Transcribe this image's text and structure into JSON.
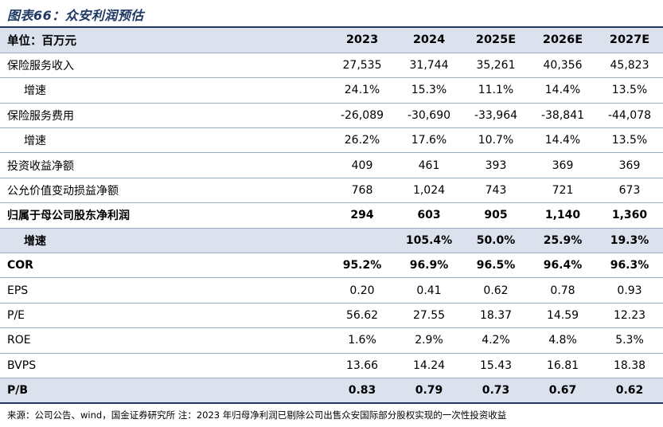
{
  "title": "图表66：众安利润预估",
  "header": {
    "label": "单位：百万元",
    "years": [
      "2023",
      "2024",
      "2025E",
      "2026E",
      "2027E"
    ]
  },
  "rows": [
    {
      "label": "保险服务收入",
      "values": [
        "27,535",
        "31,744",
        "35,261",
        "40,356",
        "45,823"
      ]
    },
    {
      "label": "增速",
      "values": [
        "24.1%",
        "15.3%",
        "11.1%",
        "14.4%",
        "13.5%"
      ]
    },
    {
      "label": "保险服务费用",
      "values": [
        "-26,089",
        "-30,690",
        "-33,964",
        "-38,841",
        "-44,078"
      ]
    },
    {
      "label": "增速",
      "values": [
        "26.2%",
        "17.6%",
        "10.7%",
        "14.4%",
        "13.5%"
      ]
    },
    {
      "label": "投资收益净额",
      "values": [
        "409",
        "461",
        "393",
        "369",
        "369"
      ]
    },
    {
      "label": "公允价值变动损益净额",
      "values": [
        "768",
        "1,024",
        "743",
        "721",
        "673"
      ]
    },
    {
      "label": "归属于母公司股东净利润",
      "values": [
        "294",
        "603",
        "905",
        "1,140",
        "1,360"
      ]
    },
    {
      "label": "增速",
      "values": [
        "",
        "105.4%",
        "50.0%",
        "25.9%",
        "19.3%"
      ]
    },
    {
      "label": "COR",
      "values": [
        "95.2%",
        "96.9%",
        "96.5%",
        "96.4%",
        "96.3%"
      ]
    },
    {
      "label": "EPS",
      "values": [
        "0.20",
        "0.41",
        "0.62",
        "0.78",
        "0.93"
      ]
    },
    {
      "label": "P/E",
      "values": [
        "56.62",
        "27.55",
        "18.37",
        "14.59",
        "12.23"
      ]
    },
    {
      "label": "ROE",
      "values": [
        "1.6%",
        "2.9%",
        "4.2%",
        "4.8%",
        "5.3%"
      ]
    },
    {
      "label": "BVPS",
      "values": [
        "13.66",
        "14.24",
        "15.43",
        "16.81",
        "18.38"
      ]
    },
    {
      "label": "P/B",
      "values": [
        "0.83",
        "0.79",
        "0.73",
        "0.67",
        "0.62"
      ]
    }
  ],
  "footer": "来源：公司公告、wind，国金证券研究所 注：2023 年归母净利润已剔除公司出售众安国际部分股权实现的一次性投资收益"
}
